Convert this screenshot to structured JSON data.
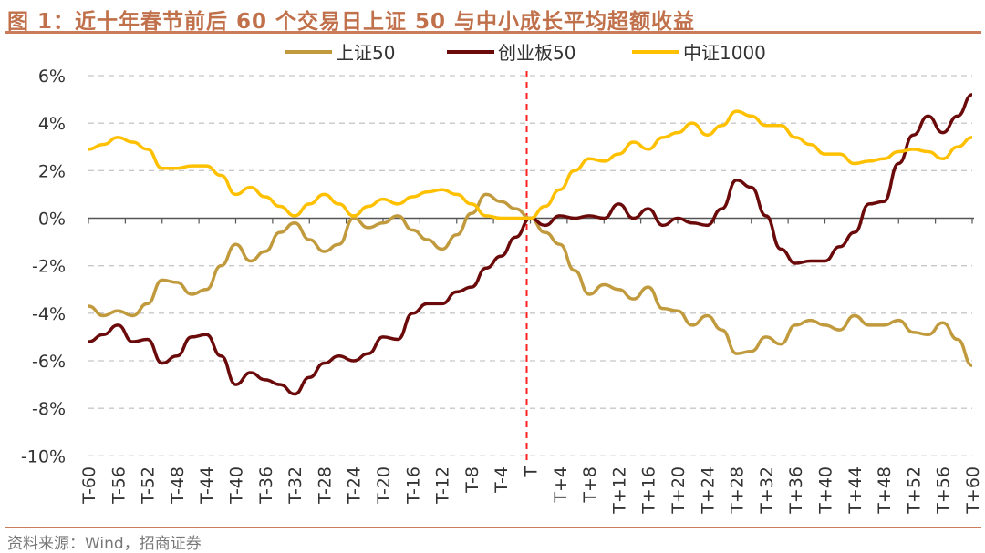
{
  "title": "图 1：近十年春节前后 60 个交易日上证 50 与中小成长平均超额收益",
  "source": "资料来源：Wind，招商证券",
  "chart_data": {
    "type": "line",
    "title": "图 1：近十年春节前后 60 个交易日上证 50 与中小成长平均超额收益",
    "x": [
      -60,
      -58,
      -56,
      -54,
      -52,
      -50,
      -48,
      -46,
      -44,
      -42,
      -40,
      -38,
      -36,
      -34,
      -32,
      -30,
      -28,
      -26,
      -24,
      -22,
      -20,
      -18,
      -16,
      -14,
      -12,
      -10,
      -8,
      -6,
      -4,
      -2,
      0,
      2,
      4,
      6,
      8,
      10,
      12,
      14,
      16,
      18,
      20,
      22,
      24,
      26,
      28,
      30,
      32,
      34,
      36,
      38,
      40,
      42,
      44,
      46,
      48,
      50,
      52,
      54,
      56,
      58,
      60
    ],
    "x_tick_labels": [
      "T-60",
      "T-56",
      "T-52",
      "T-48",
      "T-44",
      "T-40",
      "T-36",
      "T-32",
      "T-28",
      "T-24",
      "T-20",
      "T-16",
      "T-12",
      "T-8",
      "T-4",
      "T",
      "T+4",
      "T+8",
      "T+12",
      "T+16",
      "T+20",
      "T+24",
      "T+28",
      "T+32",
      "T+36",
      "T+40",
      "T+44",
      "T+48",
      "T+52",
      "T+56",
      "T+60"
    ],
    "y_tick_labels": [
      "6%",
      "4%",
      "2%",
      "0%",
      "-2%",
      "-4%",
      "-6%",
      "-8%",
      "-10%"
    ],
    "ylim": [
      -10,
      6
    ],
    "y_unit": "%",
    "grid": "horizontal dashed",
    "legend": "top",
    "reference_line": {
      "x": 0,
      "style": "red dashed"
    },
    "series": [
      {
        "name": "上证50",
        "color": "#c09a3c",
        "values": [
          -3.7,
          -4.1,
          -3.9,
          -4.1,
          -3.6,
          -2.6,
          -2.7,
          -3.2,
          -3.0,
          -2.0,
          -1.1,
          -1.8,
          -1.4,
          -0.6,
          -0.2,
          -0.9,
          -1.4,
          -1.1,
          0.0,
          -0.4,
          -0.2,
          0.1,
          -0.5,
          -0.9,
          -1.3,
          -0.7,
          0.2,
          1.0,
          0.7,
          0.4,
          0.0,
          -0.6,
          -1.1,
          -2.2,
          -3.2,
          -2.8,
          -3.0,
          -3.4,
          -2.9,
          -3.8,
          -3.9,
          -4.5,
          -4.1,
          -4.7,
          -5.7,
          -5.6,
          -5.0,
          -5.3,
          -4.5,
          -4.3,
          -4.5,
          -4.7,
          -4.1,
          -4.5,
          -4.5,
          -4.3,
          -4.8,
          -4.9,
          -4.4,
          -5.1,
          -6.2
        ]
      },
      {
        "name": "创业板50",
        "color": "#6b0a0a",
        "values": [
          -5.2,
          -4.9,
          -4.5,
          -5.2,
          -5.1,
          -6.1,
          -5.8,
          -5.0,
          -4.9,
          -5.8,
          -7.0,
          -6.5,
          -6.8,
          -7.0,
          -7.4,
          -6.7,
          -6.1,
          -5.8,
          -6.0,
          -5.7,
          -5.0,
          -5.1,
          -4.0,
          -3.6,
          -3.6,
          -3.1,
          -2.9,
          -2.1,
          -1.6,
          -0.8,
          0.0,
          -0.3,
          0.1,
          0.0,
          0.1,
          0.0,
          0.6,
          0.0,
          0.4,
          -0.3,
          0.0,
          -0.2,
          -0.3,
          0.4,
          1.6,
          1.3,
          0.1,
          -1.3,
          -1.9,
          -1.8,
          -1.8,
          -1.2,
          -0.6,
          0.6,
          0.7,
          2.3,
          3.5,
          4.3,
          3.6,
          4.3,
          5.2
        ]
      },
      {
        "name": "中证1000",
        "color": "#ffc000",
        "values": [
          2.9,
          3.1,
          3.4,
          3.2,
          2.9,
          2.1,
          2.1,
          2.2,
          2.2,
          1.8,
          1.0,
          1.3,
          0.9,
          0.5,
          0.1,
          0.6,
          1.0,
          0.6,
          0.1,
          0.5,
          0.8,
          0.6,
          0.9,
          1.1,
          1.2,
          1.0,
          0.6,
          0.1,
          0.0,
          0.0,
          0.0,
          0.5,
          1.2,
          2.0,
          2.5,
          2.4,
          2.7,
          3.2,
          2.9,
          3.4,
          3.6,
          4.0,
          3.5,
          3.9,
          4.5,
          4.3,
          3.9,
          3.9,
          3.4,
          3.1,
          2.7,
          2.7,
          2.3,
          2.4,
          2.5,
          2.8,
          2.9,
          2.8,
          2.5,
          3.0,
          3.4
        ]
      }
    ]
  }
}
